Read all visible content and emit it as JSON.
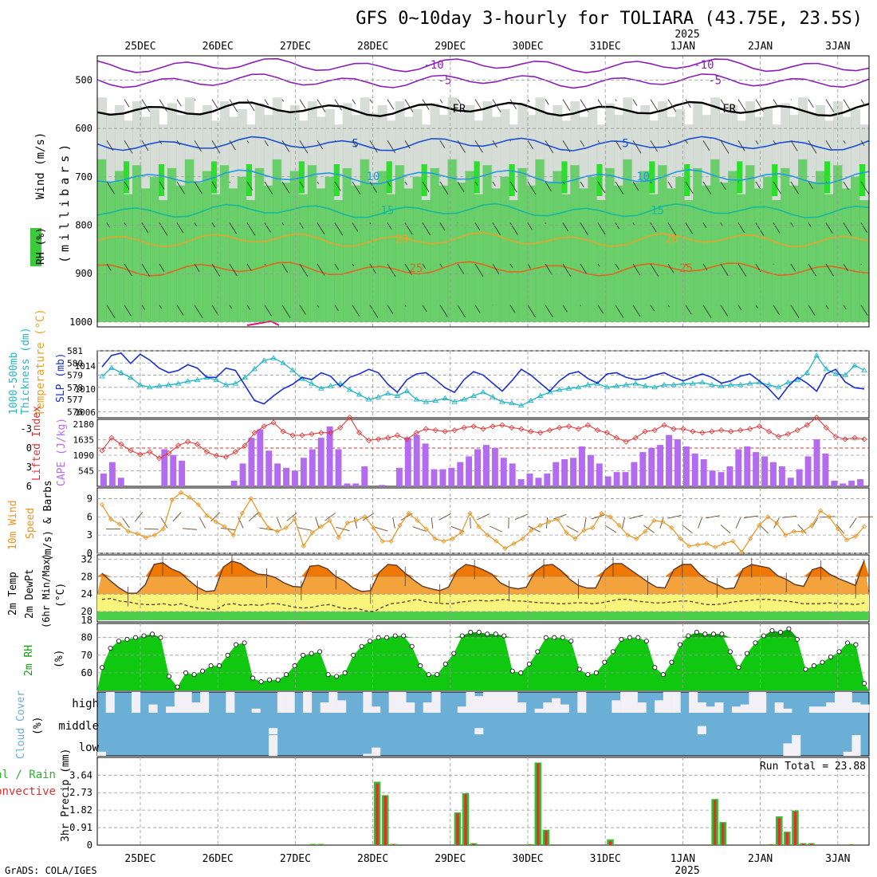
{
  "title": "GFS 0~10day 3-hourly for TOLIARA (43.75E, 23.5S)",
  "year_label": "2025",
  "credit": "GrADS: COLA/IGES",
  "run_total": "Run Total = 23.88",
  "dates": [
    "25DEC",
    "26DEC",
    "27DEC",
    "28DEC",
    "29DEC",
    "30DEC",
    "31DEC",
    "1JAN",
    "2JAN",
    "3JAN"
  ],
  "colors": {
    "rh_green": "#3cc93c",
    "rh_bright": "#00e000",
    "rh_gray": "#c8d2c8",
    "temp_purple": "#8a1fb5",
    "temp_blue": "#1a4fd6",
    "temp_lightblue": "#1f9be0",
    "temp_teal": "#16b99a",
    "temp_orange": "#e8a22c",
    "temp_darkorange": "#e0671c",
    "temp_pink": "#e0107a",
    "thick_color": "#22b5c3",
    "slp_color": "#1a2fd0",
    "li_color": "#e03030",
    "cape_color": "#b36bf0",
    "wind_color": "#e8921c",
    "temp_fill": "#f07800",
    "rh2m_fill": "#10c810",
    "cloud_blue": "#6baed6",
    "rain_green": "#30c030",
    "conv_red": "#e03030"
  },
  "panel_labels": {
    "upper_rh": "RH (%)",
    "upper_temp": "Temperature (°C)",
    "upper_wind": "Wind (m/s)",
    "upper_unit": "(millibars)",
    "thick_a": "1000-500mb",
    "thick_b": "Thickness (dm)",
    "slp": "SLP (mb)",
    "li": "Lifted Index",
    "cape": "CAPE (J/kg)",
    "wind_a": "10m Wind",
    "wind_b": "Speed",
    "wind_c": "(m/s) & Barbs",
    "temp_a": "2m Temp",
    "temp_b": "2m DewPt",
    "temp_c": "(6hr Min/Max)",
    "temp_unit": "(°C)",
    "rh2m": "2m RH",
    "rh2m_unit": "(%)",
    "cloud": "Cloud Cover",
    "cloud_unit": "(%)",
    "cloud_high": "high",
    "cloud_mid": "middle",
    "cloud_low": "low",
    "precip_a": "Total / Rain",
    "precip_b": "Convective",
    "precip_unit": "3hr Precip (mm)"
  },
  "chart_data": [
    {
      "type": "heatmap",
      "panel": "Upper air RH / Temperature / Wind",
      "y_ticks": [
        500,
        600,
        700,
        800,
        900,
        1000
      ],
      "contour_labels": [
        "-10",
        "-5",
        "FR",
        "5",
        "10",
        "15",
        "20",
        "25"
      ],
      "isotherms_approx_mb": {
        "-10": 470,
        "-5": 502,
        "FR": 560,
        "5": 632,
        "10": 700,
        "15": 770,
        "20": 830,
        "25": 890
      }
    },
    {
      "type": "line",
      "panel": "1000-500mb Thickness & SLP",
      "thickness_ticks": [
        576,
        577,
        578,
        579,
        580,
        581
      ],
      "slp_ticks": [
        1006,
        1010,
        1014
      ],
      "thickness_dm": [
        578.9,
        579.6,
        579.2,
        578.8,
        578.2,
        578.0,
        578.1,
        578.2,
        578.3,
        578.5,
        578.6,
        578.8,
        578.6,
        578.2,
        578.3,
        578.8,
        579.5,
        580.2,
        580.4,
        580.0,
        579.4,
        578.7,
        578.3,
        577.9,
        578.1,
        578.3,
        577.8,
        577.4,
        577.0,
        577.2,
        577.5,
        577.3,
        577.7,
        577.0,
        576.8,
        576.9,
        577.1,
        576.8,
        577.0,
        577.3,
        577.6,
        577.2,
        576.8,
        576.7,
        576.5,
        576.9,
        577.3,
        577.6,
        577.8,
        577.9,
        578.0,
        578.2,
        578.3,
        578.0,
        578.1,
        578.2,
        578.3,
        578.1,
        578.0,
        578.2,
        578.2,
        578.3,
        578.3,
        578.4,
        578.2,
        578.1,
        578.2,
        578.2,
        578.3,
        578.4,
        578.2,
        578.0,
        578.4,
        578.6,
        579.2,
        580.6,
        579.5,
        579.1,
        579.0,
        579.8,
        579.4
      ],
      "slp_mb": [
        1013.8,
        1015.8,
        1016.2,
        1014.4,
        1016.0,
        1015.0,
        1013.6,
        1012.8,
        1013.2,
        1014.2,
        1013.6,
        1012.0,
        1012.0,
        1013.6,
        1013.2,
        1010.6,
        1008.0,
        1007.4,
        1008.8,
        1010.0,
        1010.8,
        1012.0,
        1011.6,
        1012.8,
        1012.2,
        1010.4,
        1012.0,
        1012.6,
        1013.4,
        1012.8,
        1010.8,
        1009.4,
        1011.6,
        1012.6,
        1012.8,
        1011.6,
        1010.2,
        1009.4,
        1011.6,
        1013.0,
        1012.4,
        1011.0,
        1009.6,
        1011.4,
        1013.4,
        1012.4,
        1011.0,
        1009.6,
        1011.4,
        1012.6,
        1013.0,
        1011.8,
        1011.0,
        1012.6,
        1012.8,
        1012.0,
        1011.6,
        1011.8,
        1012.4,
        1012.8,
        1012.0,
        1011.4,
        1012.0,
        1012.6,
        1012.0,
        1011.0,
        1011.4,
        1012.2,
        1012.6,
        1011.4,
        1010.0,
        1008.2,
        1010.4,
        1012.0,
        1011.0,
        1009.6,
        1012.6,
        1013.4,
        1011.2,
        1010.2,
        1010.0
      ]
    },
    {
      "type": "bar",
      "panel": "Lifted Index & CAPE",
      "li_ticks": [
        -3,
        0,
        3,
        6
      ],
      "cape_ticks": [
        545,
        1090,
        1635,
        2180
      ],
      "lifted_index": [
        0.4,
        -1.6,
        -0.6,
        0.4,
        1.0,
        0.6,
        1.6,
        0.8,
        -0.4,
        -1.0,
        -0.6,
        0.6,
        1.2,
        1.4,
        0.6,
        -0.4,
        -2.4,
        -3.4,
        -4.0,
        -2.6,
        -2.0,
        -2.0,
        -2.2,
        -2.4,
        -2.4,
        -3.2,
        -4.8,
        -2.4,
        -1.2,
        -1.4,
        -1.6,
        -2.0,
        -1.4,
        -2.4,
        -3.0,
        -2.8,
        -2.6,
        -2.8,
        -3.2,
        -3.4,
        -3.0,
        -3.4,
        -3.6,
        -3.2,
        -3.0,
        -2.6,
        -2.4,
        -2.8,
        -3.2,
        -3.4,
        -3.0,
        -3.6,
        -2.8,
        -2.4,
        -1.6,
        -1.0,
        -1.6,
        -2.6,
        -2.8,
        -3.6,
        -3.0,
        -3.0,
        -2.6,
        -2.4,
        -2.6,
        -2.8,
        -2.6,
        -2.8,
        -3.0,
        -3.4,
        -2.6,
        -1.8,
        -2.2,
        -2.8,
        -3.6,
        -4.8,
        -3.2,
        -1.8,
        -1.4,
        -1.6,
        -1.4
      ],
      "cape_j_kg": [
        450,
        850,
        300,
        0,
        0,
        0,
        0,
        1300,
        1100,
        900,
        0,
        0,
        0,
        0,
        0,
        200,
        800,
        1700,
        2000,
        1250,
        800,
        650,
        550,
        1000,
        1300,
        1700,
        2100,
        1300,
        100,
        100,
        700,
        0,
        50,
        0,
        650,
        1700,
        1800,
        1500,
        600,
        600,
        650,
        850,
        1050,
        1300,
        1450,
        1350,
        1000,
        800,
        250,
        450,
        300,
        450,
        850,
        950,
        1000,
        1400,
        1100,
        800,
        350,
        500,
        500,
        850,
        1200,
        1350,
        1450,
        1800,
        1650,
        1400,
        1150,
        950,
        550,
        500,
        700,
        1300,
        1400,
        1200,
        1050,
        850,
        700,
        300,
        600,
        1050,
        1650,
        1150,
        200,
        100,
        200,
        250
      ]
    },
    {
      "type": "line",
      "panel": "10m Wind Speed & Barbs",
      "y_ticks": [
        0,
        3,
        6,
        9
      ],
      "wind_speed_ms": [
        8.0,
        5.6,
        4.8,
        3.6,
        3.2,
        2.6,
        3.0,
        4.0,
        8.8,
        10.0,
        9.2,
        8.0,
        6.2,
        5.2,
        4.4,
        3.0,
        6.6,
        9.0,
        6.4,
        4.2,
        3.6,
        4.2,
        5.6,
        1.2,
        3.4,
        4.4,
        5.4,
        2.6,
        5.0,
        5.4,
        6.0,
        4.2,
        2.0,
        2.0,
        4.6,
        6.6,
        5.4,
        4.0,
        2.4,
        2.0,
        2.4,
        3.4,
        6.6,
        4.4,
        3.0,
        2.0,
        0.8,
        1.6,
        2.4,
        3.8,
        4.6,
        5.2,
        5.6,
        3.4,
        2.4,
        3.8,
        4.2,
        6.6,
        6.0,
        4.6,
        3.0,
        2.4,
        3.6,
        5.4,
        5.2,
        4.2,
        2.4,
        1.2,
        1.4,
        1.6,
        1.0,
        1.6,
        2.0,
        0.2,
        2.4,
        4.6,
        6.0,
        5.0,
        3.0,
        3.6,
        3.6,
        4.6,
        7.0,
        6.0,
        4.0,
        2.2,
        2.8,
        4.4
      ]
    },
    {
      "type": "area",
      "panel": "2m Temp / 2m DewPt (6hr Min/Max)",
      "y_ticks": [
        18,
        20,
        24,
        28,
        32
      ],
      "temp_c": [
        28.8,
        27.0,
        25.4,
        24.2,
        24.2,
        26.2,
        30.8,
        31.2,
        29.8,
        29.0,
        27.2,
        25.6,
        24.6,
        24.8,
        30.2,
        31.6,
        31.0,
        29.6,
        28.6,
        28.4,
        27.8,
        26.6,
        25.8,
        25.6,
        30.4,
        30.6,
        29.8,
        28.0,
        27.0,
        25.4,
        24.6,
        24.8,
        29.0,
        30.8,
        30.6,
        28.8,
        27.2,
        25.8,
        25.2,
        24.8,
        25.6,
        29.4,
        30.8,
        30.4,
        29.6,
        28.6,
        26.6,
        25.6,
        25.2,
        25.6,
        29.2,
        30.6,
        30.8,
        29.4,
        27.4,
        26.0,
        25.4,
        25.4,
        29.4,
        31.0,
        31.0,
        29.6,
        28.2,
        26.8,
        25.6,
        25.4,
        29.6,
        30.8,
        30.8,
        28.6,
        27.0,
        26.2,
        25.2,
        25.4,
        29.8,
        30.8,
        30.4,
        30.0,
        28.2,
        27.4,
        26.2,
        25.8,
        29.6,
        30.2,
        28.6,
        27.6,
        26.8,
        26.0,
        31.8
      ],
      "dewpt_c": [
        22.8,
        23.0,
        22.4,
        22.2,
        21.8,
        21.6,
        21.6,
        21.8,
        21.4,
        21.8,
        21.2,
        20.8,
        20.6,
        20.4,
        21.6,
        21.8,
        21.4,
        21.6,
        21.4,
        21.8,
        21.8,
        21.4,
        21.0,
        20.8,
        21.0,
        21.4,
        21.6,
        21.0,
        20.6,
        20.8,
        20.2,
        20.0,
        21.0,
        21.8,
        22.0,
        22.4,
        22.8,
        22.2,
        22.0,
        21.8,
        21.8,
        22.2,
        22.4,
        22.6,
        22.4,
        22.6,
        22.8,
        22.4,
        22.4,
        22.2,
        22.0,
        22.0,
        21.8,
        21.8,
        22.0,
        22.0,
        21.8,
        22.0,
        22.4,
        22.8,
        22.8,
        22.4,
        22.2,
        22.0,
        22.0,
        22.2,
        22.4,
        22.4,
        22.0,
        21.6,
        21.6,
        21.8,
        22.2,
        22.4,
        22.6,
        22.8,
        22.8,
        22.6,
        22.4,
        22.2,
        21.8,
        21.8,
        21.8,
        22.0,
        21.8,
        21.8,
        21.6,
        22.0
      ]
    },
    {
      "type": "area",
      "panel": "2m RH",
      "y_ticks": [
        60,
        70,
        80
      ],
      "rh_pct": [
        63,
        74,
        78,
        79,
        80,
        81,
        82,
        80,
        58,
        52,
        60,
        59,
        61,
        64,
        64,
        70,
        76,
        77,
        57,
        55,
        56,
        56,
        59,
        64,
        70,
        71,
        72,
        59,
        58,
        60,
        70,
        75,
        78,
        80,
        80,
        81,
        81,
        75,
        64,
        59,
        59,
        65,
        71,
        81,
        83,
        83,
        82,
        82,
        81,
        61,
        60,
        65,
        72,
        80,
        80,
        80,
        78,
        62,
        59,
        60,
        66,
        72,
        79,
        80,
        80,
        78,
        63,
        59,
        66,
        76,
        81,
        83,
        82,
        82,
        82,
        72,
        63,
        71,
        77,
        81,
        84,
        83,
        85,
        79,
        62,
        64,
        66,
        69,
        72,
        77,
        76,
        54
      ]
    },
    {
      "type": "bar",
      "panel": "Cloud Cover",
      "categories": [
        "high",
        "middle",
        "low"
      ],
      "high_pct_periods": [
        0,
        100,
        0,
        0,
        100,
        0,
        40,
        0,
        30,
        100,
        100,
        50,
        100,
        0,
        0,
        100,
        0,
        0,
        20,
        0,
        0,
        100,
        100,
        0,
        100,
        0,
        50,
        100,
        60,
        0,
        0,
        100,
        30,
        0,
        100,
        100,
        50,
        0,
        50,
        100,
        0,
        0,
        30,
        100,
        80,
        100,
        100,
        100,
        100,
        50,
        0,
        20,
        50,
        70,
        40,
        0,
        100,
        0,
        0,
        0,
        60,
        100,
        100,
        50,
        0,
        60,
        100,
        100,
        0,
        100,
        50,
        30,
        50,
        0,
        30,
        40,
        100,
        100,
        0,
        50,
        20,
        0,
        0,
        30,
        30,
        50,
        100,
        100,
        50,
        40
      ],
      "middle_pct_periods": [
        0,
        0,
        0,
        0,
        0,
        0,
        0,
        0,
        0,
        0,
        0,
        0,
        0,
        0,
        0,
        0,
        0,
        0,
        0,
        0,
        30,
        0,
        0,
        0,
        0,
        0,
        0,
        0,
        0,
        0,
        0,
        0,
        0,
        0,
        0,
        0,
        0,
        0,
        0,
        0,
        0,
        0,
        0,
        0,
        30,
        0,
        0,
        0,
        0,
        0,
        0,
        0,
        0,
        0,
        0,
        0,
        0,
        0,
        0,
        0,
        0,
        0,
        0,
        0,
        0,
        0,
        0,
        0,
        0,
        0,
        40,
        0,
        0,
        0,
        0,
        0,
        0,
        0,
        0,
        0,
        0,
        0,
        0,
        0,
        0,
        0,
        0,
        0,
        0,
        0
      ],
      "low_pct_periods": [
        20,
        0,
        0,
        0,
        0,
        0,
        0,
        0,
        0,
        0,
        0,
        0,
        0,
        0,
        0,
        0,
        0,
        0,
        0,
        0,
        100,
        0,
        0,
        0,
        0,
        0,
        0,
        0,
        0,
        0,
        0,
        10,
        40,
        0,
        0,
        0,
        0,
        0,
        0,
        0,
        0,
        0,
        0,
        0,
        0,
        0,
        0,
        0,
        0,
        0,
        0,
        0,
        0,
        0,
        0,
        0,
        0,
        0,
        0,
        0,
        0,
        0,
        0,
        0,
        0,
        0,
        0,
        0,
        0,
        0,
        0,
        0,
        0,
        0,
        0,
        0,
        0,
        0,
        0,
        0,
        60,
        100,
        0,
        0,
        0,
        0,
        0,
        20,
        100,
        0
      ]
    },
    {
      "type": "bar",
      "panel": "3hr Precip (mm)",
      "y_ticks": [
        0,
        0.91,
        1.82,
        2.73,
        3.64
      ],
      "total_mm_periods": [
        0,
        0,
        0,
        0,
        0,
        0,
        0,
        0,
        0,
        0,
        0,
        0,
        0,
        0,
        0,
        0,
        0,
        0,
        0,
        0,
        0,
        0,
        0,
        0,
        0,
        0,
        0.06,
        0.06,
        0,
        0,
        0,
        0,
        0,
        0,
        3.3,
        2.6,
        0.06,
        0,
        0,
        0,
        0,
        0,
        0,
        0,
        1.7,
        2.7,
        0.1,
        0,
        0,
        0,
        0,
        0,
        0,
        0.05,
        4.3,
        0.8,
        0,
        0,
        0,
        0,
        0,
        0,
        0,
        0.3,
        0,
        0,
        0,
        0,
        0,
        0,
        0,
        0,
        0,
        0,
        0,
        0,
        2.4,
        1.2,
        0,
        0,
        0,
        0,
        0,
        0.05,
        1.5,
        0.7,
        1.8,
        0.1,
        0.1,
        0,
        0,
        0,
        0,
        0.05,
        0,
        0
      ],
      "convective_mm_periods": [
        0,
        0,
        0,
        0,
        0,
        0,
        0,
        0,
        0,
        0,
        0,
        0,
        0,
        0,
        0,
        0,
        0,
        0,
        0,
        0,
        0,
        0,
        0,
        0,
        0,
        0,
        0.04,
        0.04,
        0,
        0,
        0,
        0,
        0,
        0,
        3.2,
        2.55,
        0.05,
        0,
        0,
        0,
        0,
        0,
        0,
        0,
        1.65,
        2.65,
        0.08,
        0,
        0,
        0,
        0,
        0,
        0,
        0.04,
        4.25,
        0.75,
        0,
        0,
        0,
        0,
        0,
        0,
        0,
        0.2,
        0,
        0,
        0,
        0,
        0,
        0,
        0,
        0,
        0,
        0,
        0,
        0,
        2.35,
        1.15,
        0,
        0,
        0,
        0,
        0,
        0.04,
        1.4,
        0.65,
        1.75,
        0.08,
        0.08,
        0,
        0,
        0,
        0,
        0.04,
        0,
        0
      ],
      "run_total_mm": 23.88
    }
  ]
}
